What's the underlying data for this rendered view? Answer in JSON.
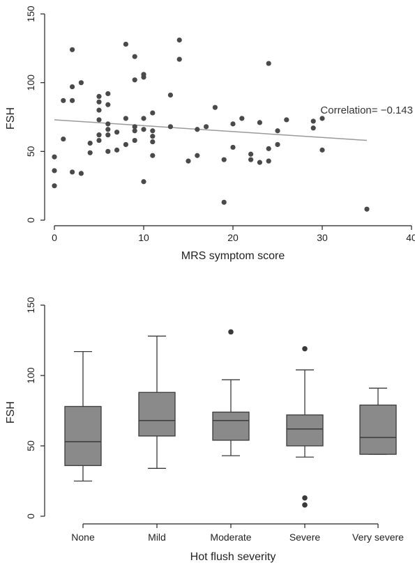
{
  "chart_data": [
    {
      "type": "scatter",
      "title": "",
      "xlabel": "MRS symptom score",
      "ylabel": "FSH",
      "xlim": [
        0,
        40
      ],
      "ylim": [
        0,
        150
      ],
      "xticks": [
        "0",
        "10",
        "20",
        "30",
        "40"
      ],
      "yticks": [
        "0",
        "50",
        "100",
        "150"
      ],
      "annotation": "Correlation= −0.143",
      "fit_line": {
        "x": [
          0,
          35
        ],
        "y": [
          73,
          58
        ]
      },
      "points": [
        [
          0,
          46
        ],
        [
          0,
          36
        ],
        [
          0,
          25
        ],
        [
          1,
          59
        ],
        [
          1,
          87
        ],
        [
          2,
          124
        ],
        [
          2,
          97
        ],
        [
          2,
          87
        ],
        [
          2,
          35
        ],
        [
          3,
          100
        ],
        [
          3,
          34
        ],
        [
          4,
          56
        ],
        [
          4,
          49
        ],
        [
          5,
          90
        ],
        [
          5,
          86
        ],
        [
          5,
          80
        ],
        [
          5,
          73
        ],
        [
          5,
          62
        ],
        [
          5,
          58
        ],
        [
          6,
          92
        ],
        [
          6,
          84
        ],
        [
          6,
          70
        ],
        [
          6,
          66
        ],
        [
          6,
          62
        ],
        [
          6,
          50
        ],
        [
          7,
          51
        ],
        [
          7,
          64
        ],
        [
          8,
          128
        ],
        [
          8,
          74
        ],
        [
          8,
          55
        ],
        [
          9,
          119
        ],
        [
          9,
          102
        ],
        [
          9,
          68
        ],
        [
          9,
          65
        ],
        [
          9,
          58
        ],
        [
          10,
          106
        ],
        [
          10,
          104
        ],
        [
          10,
          74
        ],
        [
          10,
          66
        ],
        [
          10,
          28
        ],
        [
          11,
          78
        ],
        [
          11,
          65
        ],
        [
          11,
          61
        ],
        [
          11,
          57
        ],
        [
          11,
          47
        ],
        [
          13,
          91
        ],
        [
          13,
          68
        ],
        [
          14,
          131
        ],
        [
          14,
          117
        ],
        [
          15,
          43
        ],
        [
          16,
          66
        ],
        [
          16,
          47
        ],
        [
          17,
          68
        ],
        [
          18,
          82
        ],
        [
          19,
          13
        ],
        [
          19,
          44
        ],
        [
          20,
          70
        ],
        [
          20,
          53
        ],
        [
          21,
          74
        ],
        [
          22,
          48
        ],
        [
          22,
          44
        ],
        [
          23,
          71
        ],
        [
          23,
          42
        ],
        [
          24,
          114
        ],
        [
          24,
          52
        ],
        [
          24,
          43
        ],
        [
          25,
          65
        ],
        [
          25,
          55
        ],
        [
          26,
          73
        ],
        [
          29,
          72
        ],
        [
          29,
          67
        ],
        [
          30,
          74
        ],
        [
          30,
          51
        ],
        [
          35,
          8
        ]
      ]
    },
    {
      "type": "box",
      "title": "",
      "xlabel": "Hot flush severity",
      "ylabel": "FSH",
      "ylim": [
        0,
        150
      ],
      "yticks": [
        "0",
        "50",
        "100",
        "150"
      ],
      "categories": [
        "None",
        "Mild",
        "Moderate",
        "Severe",
        "Very severe"
      ],
      "boxes": [
        {
          "min": 25,
          "q1": 36,
          "median": 53,
          "q3": 78,
          "max": 117,
          "outliers": []
        },
        {
          "min": 34,
          "q1": 57,
          "median": 68,
          "q3": 88,
          "max": 128,
          "outliers": []
        },
        {
          "min": 43,
          "q1": 54,
          "median": 68,
          "q3": 74,
          "max": 97,
          "outliers": [
            131
          ]
        },
        {
          "min": 42,
          "q1": 50,
          "median": 62,
          "q3": 72,
          "max": 104,
          "outliers": [
            119,
            13,
            8
          ]
        },
        {
          "min": 44,
          "q1": 44,
          "median": 56,
          "q3": 79,
          "max": 91,
          "outliers": []
        }
      ]
    }
  ]
}
